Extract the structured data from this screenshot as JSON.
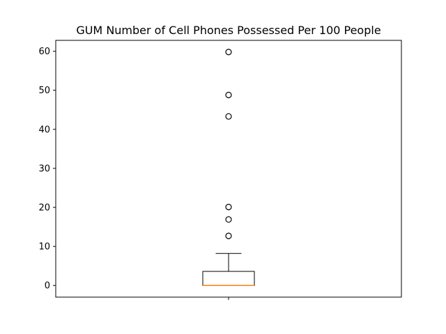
{
  "chart_data": {
    "type": "box",
    "title": "GUM Number of Cell Phones Possessed Per 100 People",
    "xlabel": "",
    "ylabel": "",
    "categories": [
      ""
    ],
    "ylim": [
      -2.99,
      62.79
    ],
    "yticks": [
      "0",
      "10",
      "20",
      "30",
      "40",
      "50",
      "60"
    ],
    "ytick_values": [
      0,
      10,
      20,
      30,
      40,
      50,
      60
    ],
    "box": {
      "whisker_low": 0,
      "q1": 0,
      "median": 0,
      "q3": 3.6,
      "whisker_high": 8.2
    },
    "outliers": [
      12.7,
      16.9,
      20.1,
      43.3,
      48.8,
      59.8
    ],
    "colors": {
      "box": "#000000",
      "median": "#ff7f0e",
      "outlier_edge": "#000000"
    },
    "grid": false
  }
}
